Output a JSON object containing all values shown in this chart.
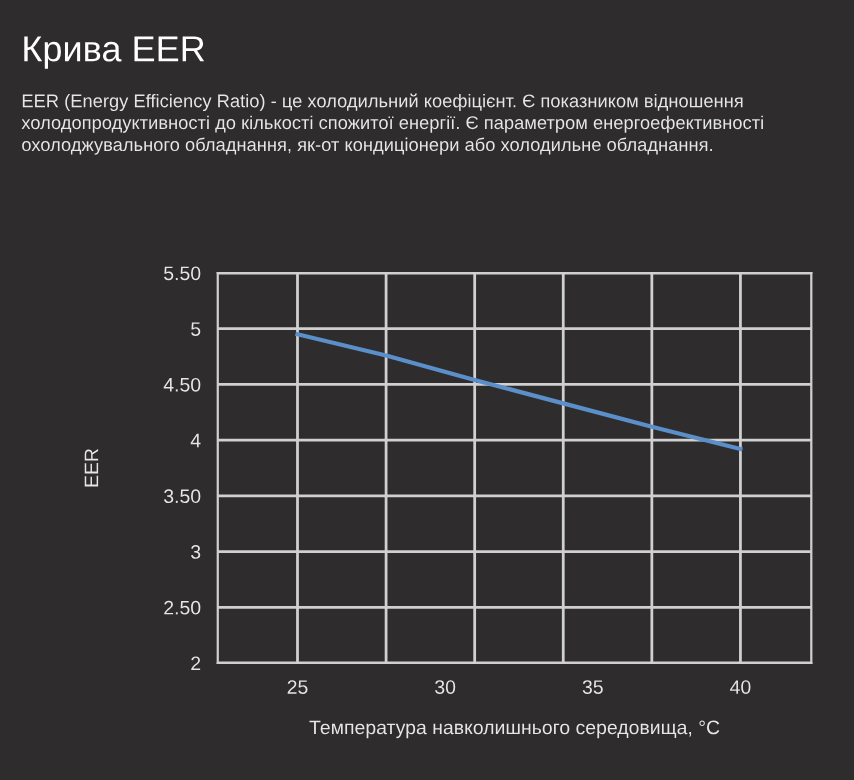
{
  "chart_data": {
    "type": "line",
    "title": "Крива EER",
    "subtitle": "EER (Energy Efficiency Ratio) - це холодильний коефіцієнт. Є показником відношення холодопродуктивності до кількості спожитої енергії. Є параметром енергоефективності охолоджувального обладнання, як-от кондиціонери або холодильне обладнання.",
    "xlabel": "Температура навколишнього середовища, °C",
    "ylabel": "EER",
    "x": [
      25,
      28,
      31,
      34,
      37,
      40
    ],
    "series": [
      {
        "color": "#5b8fc9",
        "values": [
          4.95,
          4.76,
          4.54,
          4.33,
          4.12,
          3.92
        ]
      }
    ],
    "xlim": [
      22.3,
      42.4
    ],
    "xticks": [
      25,
      30,
      35,
      40
    ],
    "ylim": [
      2,
      5.5
    ],
    "yticks": [
      {
        "value": 2,
        "label": "2"
      },
      {
        "value": 2.5,
        "label": "2.50"
      },
      {
        "value": 3,
        "label": "3"
      },
      {
        "value": 3.5,
        "label": "3.50"
      },
      {
        "value": 4,
        "label": "4"
      },
      {
        "value": 4.5,
        "label": "4.50"
      },
      {
        "value": 5,
        "label": "5"
      },
      {
        "value": 5.5,
        "label": "5.50"
      }
    ],
    "grid": "y",
    "ref_lines": [
      {
        "axis": "x",
        "value": 25,
        "color": "#d0d0d0"
      },
      {
        "axis": "x",
        "value": 28,
        "color": "#d0d0d0"
      },
      {
        "axis": "x",
        "value": 31,
        "color": "#d0d0d0"
      },
      {
        "axis": "x",
        "value": 34,
        "color": "#d0d0d0"
      },
      {
        "axis": "x",
        "value": 37,
        "color": "#d0d0d0"
      },
      {
        "axis": "x",
        "value": 40,
        "color": "#d0d0d0"
      }
    ]
  }
}
